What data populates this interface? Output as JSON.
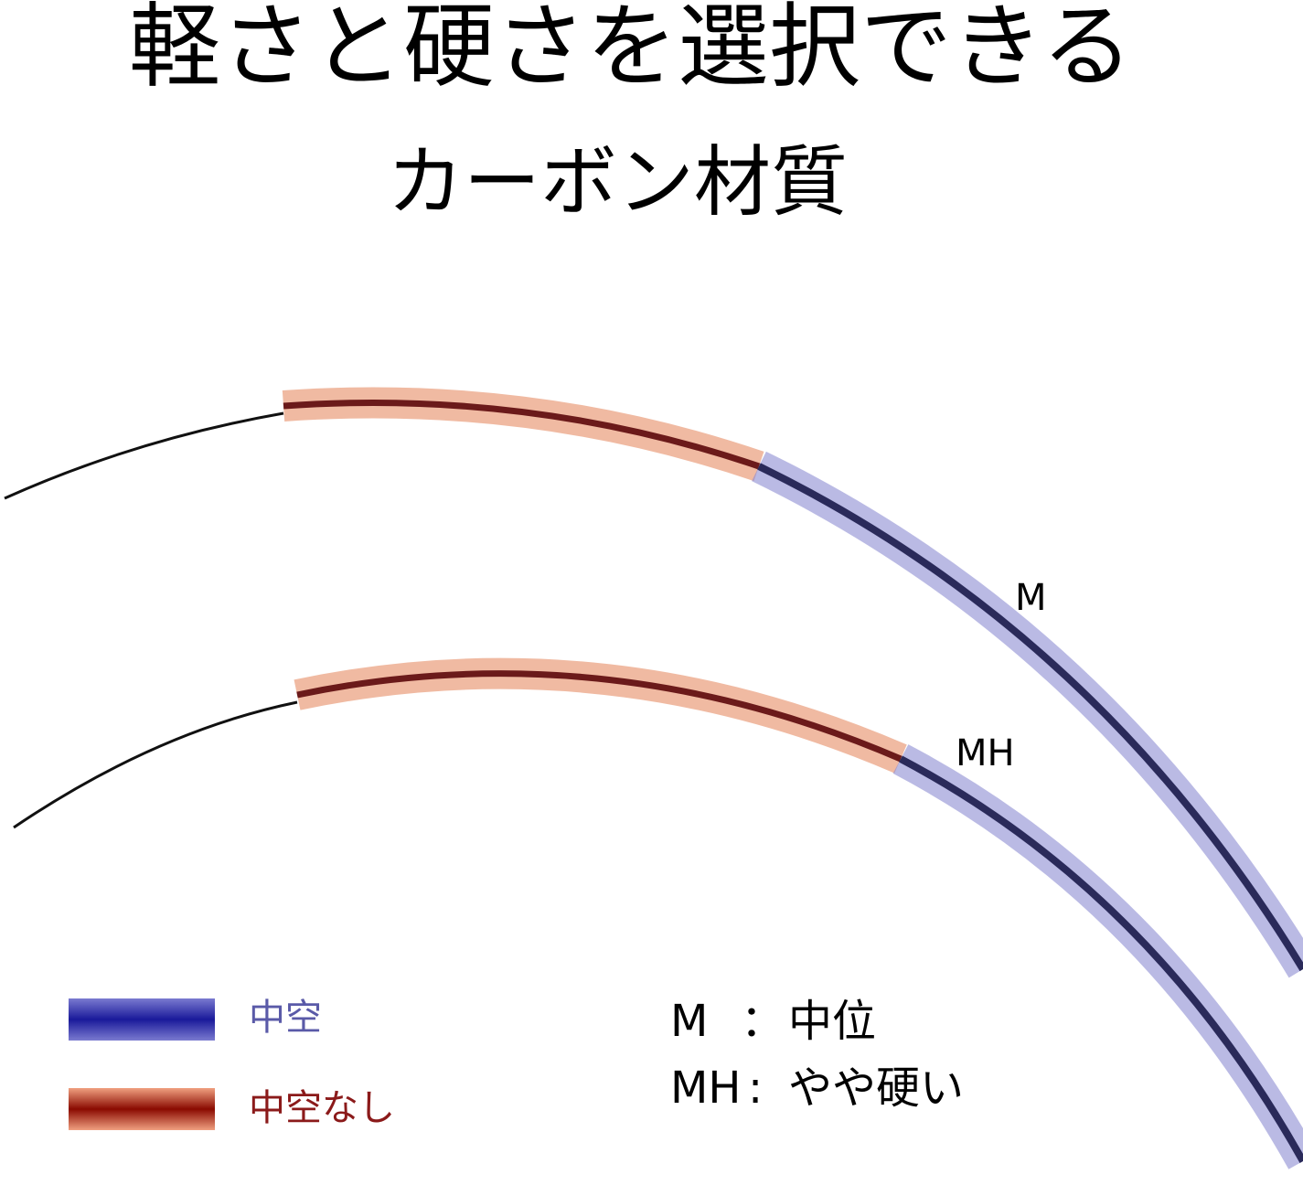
{
  "title": {
    "line1": "軽さと硬さを選択できる",
    "line2": "カーボン材質"
  },
  "rods": [
    {
      "label": "M"
    },
    {
      "label": "MH"
    }
  ],
  "legend": [
    {
      "label": "中空"
    },
    {
      "label": "中空なし"
    }
  ],
  "key": [
    {
      "code": "M",
      "separator": "：",
      "meaning": "中位"
    },
    {
      "code": "MH",
      "separator": ":",
      "meaning": "やや硬い"
    }
  ]
}
